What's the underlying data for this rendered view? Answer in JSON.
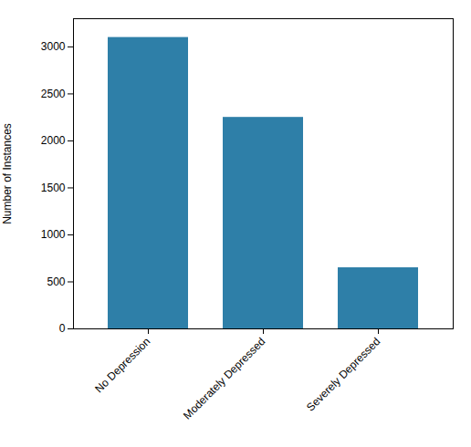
{
  "chart_data": {
    "type": "bar",
    "categories": [
      "No Depression",
      "Moderately Depressed",
      "Severely Depressed"
    ],
    "values": [
      3100,
      2250,
      650
    ],
    "color": "#2e7fa8",
    "ylabel": "Number of Instances",
    "ylim": [
      0,
      3300
    ],
    "yticks": [
      0,
      500,
      1000,
      1500,
      2000,
      2500,
      3000
    ]
  }
}
